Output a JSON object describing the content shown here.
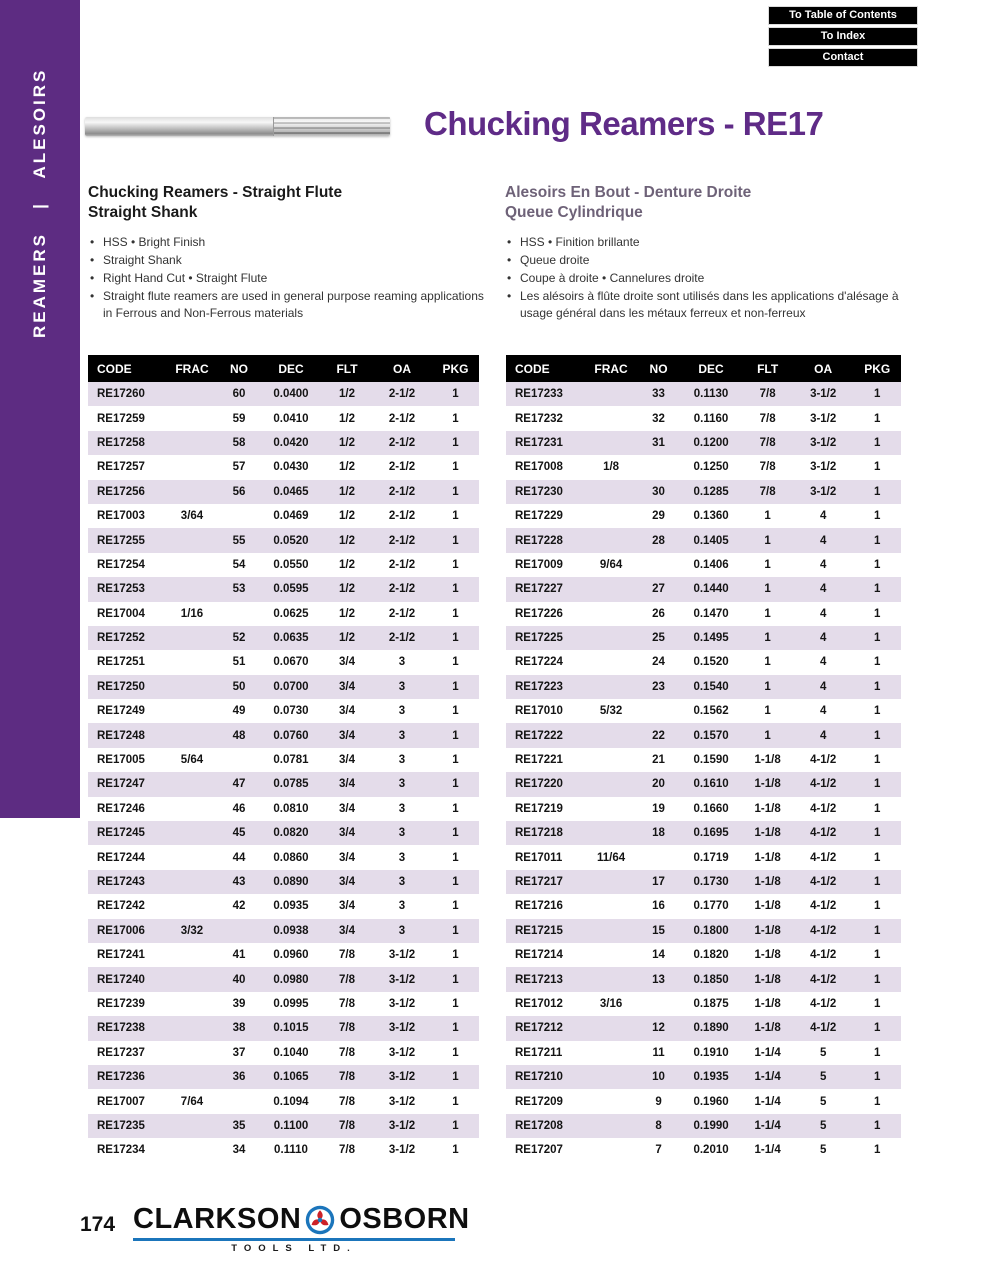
{
  "colors": {
    "sidebar_purple": "#5d2c82",
    "title_purple": "#5f2b87",
    "row_stripe_lavender": "#e4dcea",
    "french_heading_gray": "#6e6278",
    "logo_blue": "#1b75bb",
    "logo_red": "#cc2027"
  },
  "sidebar": {
    "vertical_label": "REAMERS   |   ALESOIRS"
  },
  "nav": {
    "buttons": [
      "To Table of Contents",
      "To Index",
      "Contact"
    ]
  },
  "header": {
    "title": "Chucking Reamers - RE17"
  },
  "english": {
    "heading_line1": "Chucking Reamers - Straight Flute",
    "heading_line2": "Straight Shank",
    "bullets": [
      "HSS • Bright Finish",
      "Straight Shank",
      "Right Hand Cut • Straight Flute",
      "Straight flute reamers are used in general purpose reaming applications in Ferrous and Non-Ferrous materials"
    ]
  },
  "french": {
    "heading_line1": "Alesoirs En Bout - Denture Droite",
    "heading_line2": "Queue Cylindrique",
    "bullets": [
      "HSS • Finition brillante",
      "Queue droite",
      "Coupe à droite • Cannelures droite",
      "Les alésoirs à flûte droite sont utilisés dans les applications d'alésage à usage général dans les métaux ferreux et non-ferreux"
    ]
  },
  "table": {
    "headers": [
      "CODE",
      "FRAC",
      "NO",
      "DEC",
      "FLT",
      "OA",
      "PKG"
    ],
    "left_rows": [
      [
        "RE17260",
        "",
        "60",
        "0.0400",
        "1/2",
        "2-1/2",
        "1"
      ],
      [
        "RE17259",
        "",
        "59",
        "0.0410",
        "1/2",
        "2-1/2",
        "1"
      ],
      [
        "RE17258",
        "",
        "58",
        "0.0420",
        "1/2",
        "2-1/2",
        "1"
      ],
      [
        "RE17257",
        "",
        "57",
        "0.0430",
        "1/2",
        "2-1/2",
        "1"
      ],
      [
        "RE17256",
        "",
        "56",
        "0.0465",
        "1/2",
        "2-1/2",
        "1"
      ],
      [
        "RE17003",
        "3/64",
        "",
        "0.0469",
        "1/2",
        "2-1/2",
        "1"
      ],
      [
        "RE17255",
        "",
        "55",
        "0.0520",
        "1/2",
        "2-1/2",
        "1"
      ],
      [
        "RE17254",
        "",
        "54",
        "0.0550",
        "1/2",
        "2-1/2",
        "1"
      ],
      [
        "RE17253",
        "",
        "53",
        "0.0595",
        "1/2",
        "2-1/2",
        "1"
      ],
      [
        "RE17004",
        "1/16",
        "",
        "0.0625",
        "1/2",
        "2-1/2",
        "1"
      ],
      [
        "RE17252",
        "",
        "52",
        "0.0635",
        "1/2",
        "2-1/2",
        "1"
      ],
      [
        "RE17251",
        "",
        "51",
        "0.0670",
        "3/4",
        "3",
        "1"
      ],
      [
        "RE17250",
        "",
        "50",
        "0.0700",
        "3/4",
        "3",
        "1"
      ],
      [
        "RE17249",
        "",
        "49",
        "0.0730",
        "3/4",
        "3",
        "1"
      ],
      [
        "RE17248",
        "",
        "48",
        "0.0760",
        "3/4",
        "3",
        "1"
      ],
      [
        "RE17005",
        "5/64",
        "",
        "0.0781",
        "3/4",
        "3",
        "1"
      ],
      [
        "RE17247",
        "",
        "47",
        "0.0785",
        "3/4",
        "3",
        "1"
      ],
      [
        "RE17246",
        "",
        "46",
        "0.0810",
        "3/4",
        "3",
        "1"
      ],
      [
        "RE17245",
        "",
        "45",
        "0.0820",
        "3/4",
        "3",
        "1"
      ],
      [
        "RE17244",
        "",
        "44",
        "0.0860",
        "3/4",
        "3",
        "1"
      ],
      [
        "RE17243",
        "",
        "43",
        "0.0890",
        "3/4",
        "3",
        "1"
      ],
      [
        "RE17242",
        "",
        "42",
        "0.0935",
        "3/4",
        "3",
        "1"
      ],
      [
        "RE17006",
        "3/32",
        "",
        "0.0938",
        "3/4",
        "3",
        "1"
      ],
      [
        "RE17241",
        "",
        "41",
        "0.0960",
        "7/8",
        "3-1/2",
        "1"
      ],
      [
        "RE17240",
        "",
        "40",
        "0.0980",
        "7/8",
        "3-1/2",
        "1"
      ],
      [
        "RE17239",
        "",
        "39",
        "0.0995",
        "7/8",
        "3-1/2",
        "1"
      ],
      [
        "RE17238",
        "",
        "38",
        "0.1015",
        "7/8",
        "3-1/2",
        "1"
      ],
      [
        "RE17237",
        "",
        "37",
        "0.1040",
        "7/8",
        "3-1/2",
        "1"
      ],
      [
        "RE17236",
        "",
        "36",
        "0.1065",
        "7/8",
        "3-1/2",
        "1"
      ],
      [
        "RE17007",
        "7/64",
        "",
        "0.1094",
        "7/8",
        "3-1/2",
        "1"
      ],
      [
        "RE17235",
        "",
        "35",
        "0.1100",
        "7/8",
        "3-1/2",
        "1"
      ],
      [
        "RE17234",
        "",
        "34",
        "0.1110",
        "7/8",
        "3-1/2",
        "1"
      ]
    ],
    "right_rows": [
      [
        "RE17233",
        "",
        "33",
        "0.1130",
        "7/8",
        "3-1/2",
        "1"
      ],
      [
        "RE17232",
        "",
        "32",
        "0.1160",
        "7/8",
        "3-1/2",
        "1"
      ],
      [
        "RE17231",
        "",
        "31",
        "0.1200",
        "7/8",
        "3-1/2",
        "1"
      ],
      [
        "RE17008",
        "1/8",
        "",
        "0.1250",
        "7/8",
        "3-1/2",
        "1"
      ],
      [
        "RE17230",
        "",
        "30",
        "0.1285",
        "7/8",
        "3-1/2",
        "1"
      ],
      [
        "RE17229",
        "",
        "29",
        "0.1360",
        "1",
        "4",
        "1"
      ],
      [
        "RE17228",
        "",
        "28",
        "0.1405",
        "1",
        "4",
        "1"
      ],
      [
        "RE17009",
        "9/64",
        "",
        "0.1406",
        "1",
        "4",
        "1"
      ],
      [
        "RE17227",
        "",
        "27",
        "0.1440",
        "1",
        "4",
        "1"
      ],
      [
        "RE17226",
        "",
        "26",
        "0.1470",
        "1",
        "4",
        "1"
      ],
      [
        "RE17225",
        "",
        "25",
        "0.1495",
        "1",
        "4",
        "1"
      ],
      [
        "RE17224",
        "",
        "24",
        "0.1520",
        "1",
        "4",
        "1"
      ],
      [
        "RE17223",
        "",
        "23",
        "0.1540",
        "1",
        "4",
        "1"
      ],
      [
        "RE17010",
        "5/32",
        "",
        "0.1562",
        "1",
        "4",
        "1"
      ],
      [
        "RE17222",
        "",
        "22",
        "0.1570",
        "1",
        "4",
        "1"
      ],
      [
        "RE17221",
        "",
        "21",
        "0.1590",
        "1-1/8",
        "4-1/2",
        "1"
      ],
      [
        "RE17220",
        "",
        "20",
        "0.1610",
        "1-1/8",
        "4-1/2",
        "1"
      ],
      [
        "RE17219",
        "",
        "19",
        "0.1660",
        "1-1/8",
        "4-1/2",
        "1"
      ],
      [
        "RE17218",
        "",
        "18",
        "0.1695",
        "1-1/8",
        "4-1/2",
        "1"
      ],
      [
        "RE17011",
        "11/64",
        "",
        "0.1719",
        "1-1/8",
        "4-1/2",
        "1"
      ],
      [
        "RE17217",
        "",
        "17",
        "0.1730",
        "1-1/8",
        "4-1/2",
        "1"
      ],
      [
        "RE17216",
        "",
        "16",
        "0.1770",
        "1-1/8",
        "4-1/2",
        "1"
      ],
      [
        "RE17215",
        "",
        "15",
        "0.1800",
        "1-1/8",
        "4-1/2",
        "1"
      ],
      [
        "RE17214",
        "",
        "14",
        "0.1820",
        "1-1/8",
        "4-1/2",
        "1"
      ],
      [
        "RE17213",
        "",
        "13",
        "0.1850",
        "1-1/8",
        "4-1/2",
        "1"
      ],
      [
        "RE17012",
        "3/16",
        "",
        "0.1875",
        "1-1/8",
        "4-1/2",
        "1"
      ],
      [
        "RE17212",
        "",
        "12",
        "0.1890",
        "1-1/8",
        "4-1/2",
        "1"
      ],
      [
        "RE17211",
        "",
        "11",
        "0.1910",
        "1-1/4",
        "5",
        "1"
      ],
      [
        "RE17210",
        "",
        "10",
        "0.1935",
        "1-1/4",
        "5",
        "1"
      ],
      [
        "RE17209",
        "",
        "9",
        "0.1960",
        "1-1/4",
        "5",
        "1"
      ],
      [
        "RE17208",
        "",
        "8",
        "0.1990",
        "1-1/4",
        "5",
        "1"
      ],
      [
        "RE17207",
        "",
        "7",
        "0.2010",
        "1-1/4",
        "5",
        "1"
      ]
    ]
  },
  "footer": {
    "page_number": "174",
    "logo_left": "CLARKSON",
    "logo_right": "OSBORN",
    "logo_sub": "TOOLS LTD."
  }
}
